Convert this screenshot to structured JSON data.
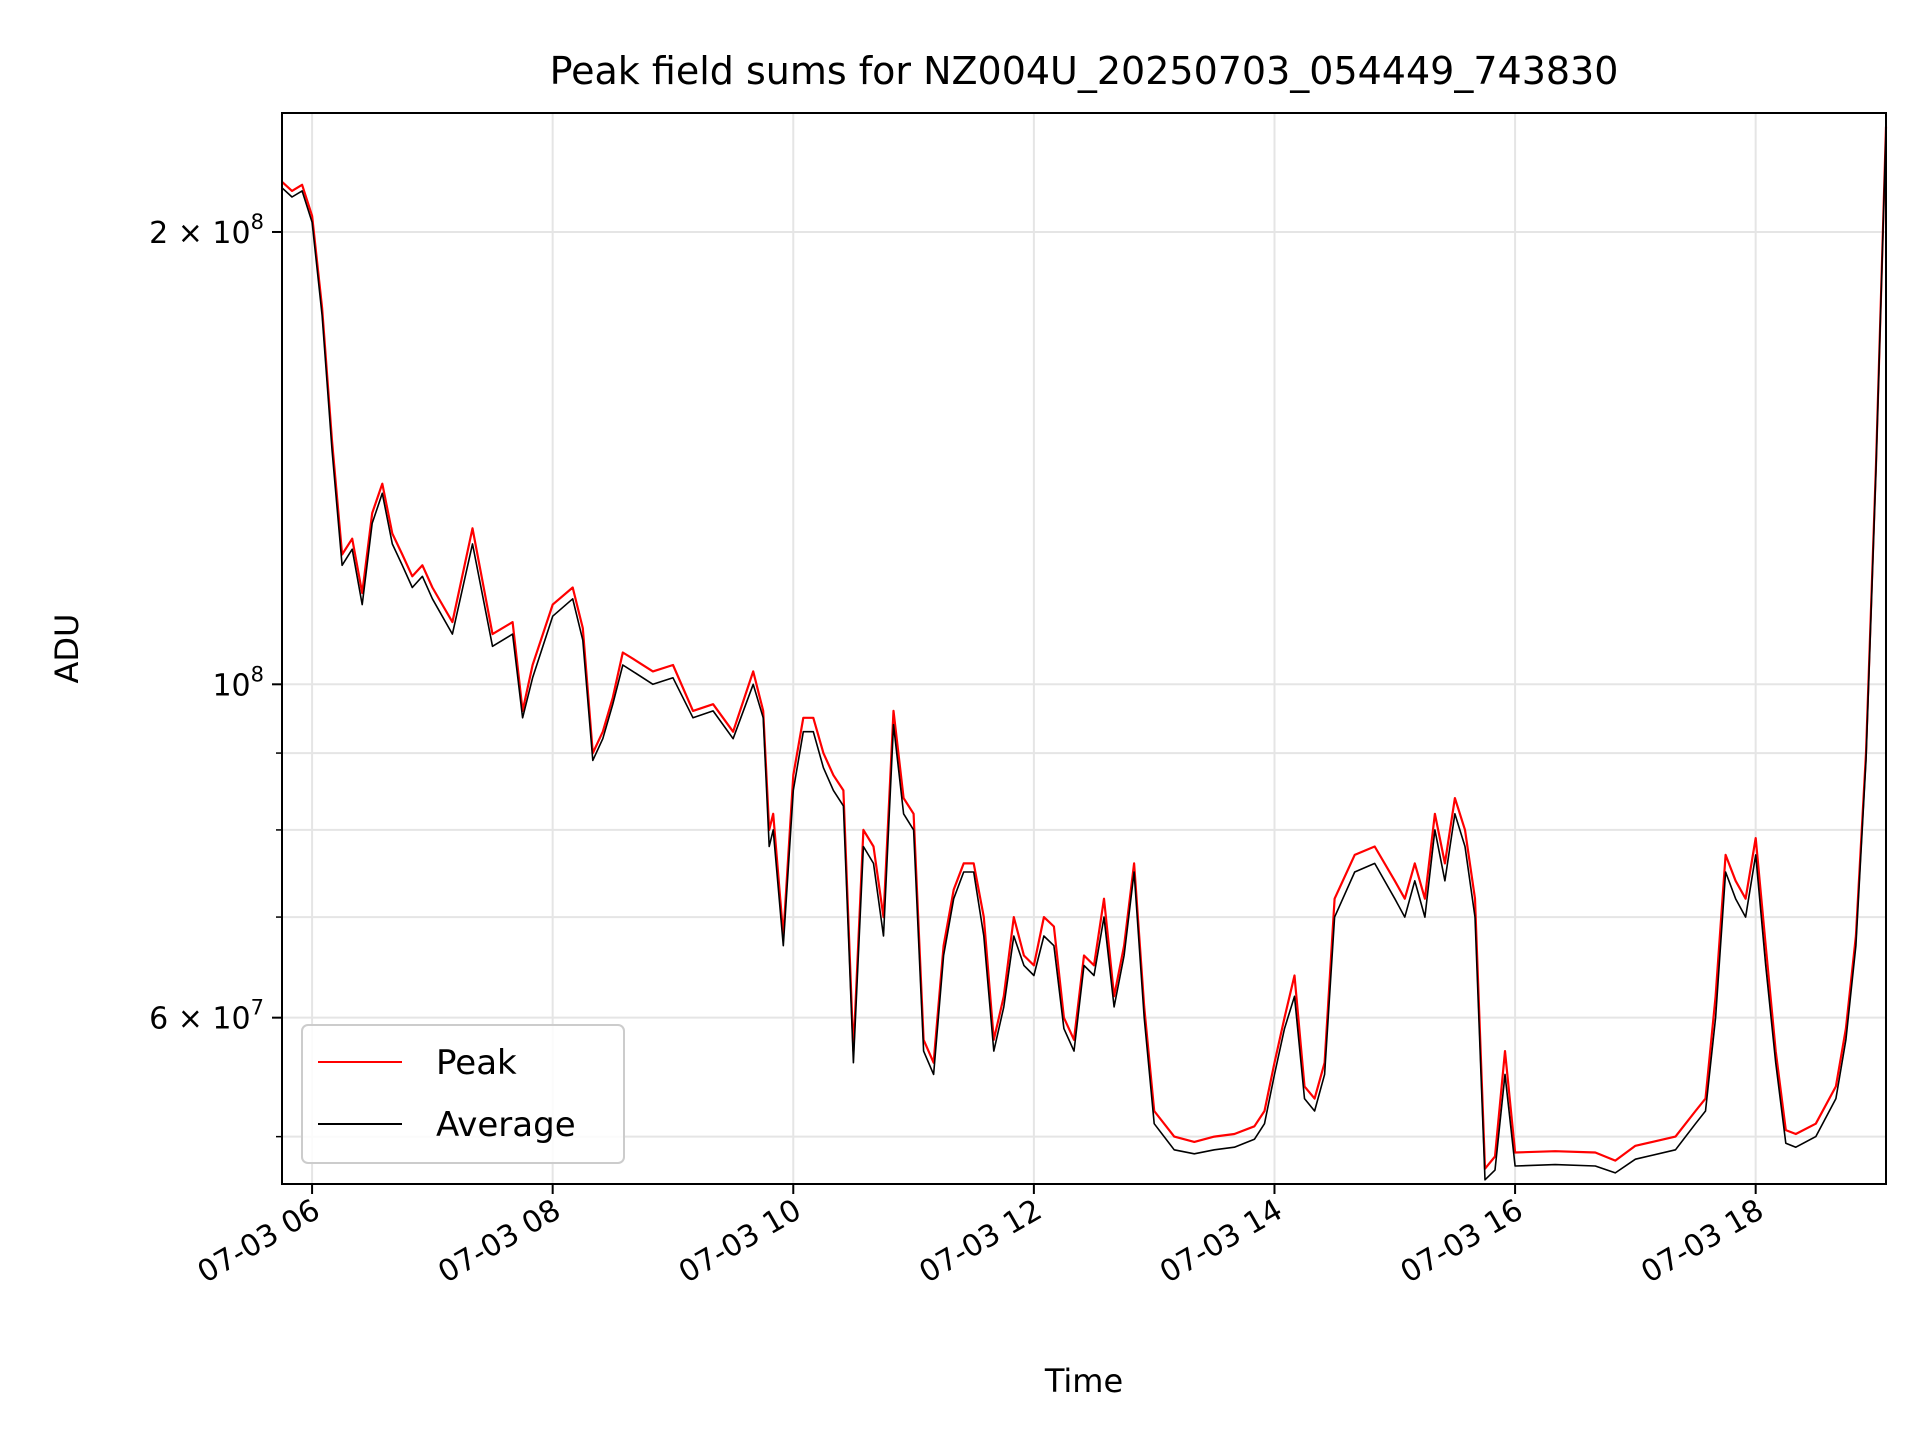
{
  "chart_data": {
    "type": "line",
    "title": "Peak field sums for NZ004U_20250703_054449_743830",
    "xlabel": "Time",
    "ylabel": "ADU",
    "y_scale": "log",
    "ylim": [
      46500000,
      240000000
    ],
    "xlim": [
      "2025-07-03 05:45",
      "2025-07-03 19:05"
    ],
    "x_ticks": [
      {
        "time": "2025-07-03 06:00",
        "label": "07-03 06"
      },
      {
        "time": "2025-07-03 08:00",
        "label": "07-03 08"
      },
      {
        "time": "2025-07-03 10:00",
        "label": "07-03 10"
      },
      {
        "time": "2025-07-03 12:00",
        "label": "07-03 12"
      },
      {
        "time": "2025-07-03 14:00",
        "label": "07-03 14"
      },
      {
        "time": "2025-07-03 16:00",
        "label": "07-03 16"
      },
      {
        "time": "2025-07-03 18:00",
        "label": "07-03 18"
      }
    ],
    "y_major_ticks": [
      {
        "value": 200000000,
        "base": "2 × 10",
        "exp": "8"
      },
      {
        "value": 100000000,
        "base": "10",
        "exp": "8"
      },
      {
        "value": 60000000,
        "base": "6 × 10",
        "exp": "7"
      }
    ],
    "y_minor_ticks": [
      50000000,
      70000000,
      80000000,
      90000000
    ],
    "grid": true,
    "legend_position": "bottom-left",
    "colors": {
      "Peak": "#ff0000",
      "Average": "#000000",
      "grid": "#e5e5e5"
    },
    "x": [
      "05:45",
      "05:50",
      "05:55",
      "06:00",
      "06:05",
      "06:10",
      "06:15",
      "06:20",
      "06:25",
      "06:30",
      "06:35",
      "06:40",
      "06:45",
      "06:50",
      "06:55",
      "07:00",
      "07:10",
      "07:20",
      "07:30",
      "07:40",
      "07:45",
      "07:50",
      "08:00",
      "08:10",
      "08:15",
      "08:20",
      "08:25",
      "08:30",
      "08:35",
      "08:40",
      "08:50",
      "09:00",
      "09:10",
      "09:20",
      "09:30",
      "09:40",
      "09:45",
      "09:48",
      "09:50",
      "09:55",
      "10:00",
      "10:05",
      "10:10",
      "10:15",
      "10:20",
      "10:25",
      "10:30",
      "10:35",
      "10:40",
      "10:45",
      "10:50",
      "10:55",
      "11:00",
      "11:05",
      "11:10",
      "11:15",
      "11:20",
      "11:25",
      "11:30",
      "11:35",
      "11:40",
      "11:45",
      "11:50",
      "11:55",
      "12:00",
      "12:05",
      "12:10",
      "12:15",
      "12:20",
      "12:25",
      "12:30",
      "12:35",
      "12:40",
      "12:45",
      "12:50",
      "12:55",
      "13:00",
      "13:10",
      "13:20",
      "13:30",
      "13:40",
      "13:50",
      "13:55",
      "14:00",
      "14:05",
      "14:10",
      "14:15",
      "14:20",
      "14:25",
      "14:30",
      "14:40",
      "14:50",
      "15:00",
      "15:05",
      "15:10",
      "15:15",
      "15:20",
      "15:25",
      "15:30",
      "15:35",
      "15:40",
      "15:45",
      "15:50",
      "15:55",
      "16:00",
      "16:20",
      "16:40",
      "16:50",
      "17:00",
      "17:20",
      "17:30",
      "17:35",
      "17:40",
      "17:45",
      "17:50",
      "17:55",
      "18:00",
      "18:05",
      "18:10",
      "18:15",
      "18:20",
      "18:30",
      "18:40",
      "18:45",
      "18:50",
      "18:55",
      "19:00",
      "19:05"
    ],
    "series": [
      {
        "name": "Peak",
        "values": [
          216000000,
          213000000,
          215000000,
          205000000,
          178000000,
          145000000,
          122000000,
          125000000,
          115000000,
          130000000,
          136000000,
          126000000,
          122000000,
          118000000,
          120000000,
          116000000,
          110000000,
          127000000,
          108000000,
          110000000,
          96000000,
          103000000,
          113000000,
          116000000,
          109000000,
          90000000,
          93000000,
          98000000,
          105000000,
          104000000,
          102000000,
          103000000,
          96000000,
          97000000,
          93000000,
          102000000,
          96000000,
          80000000,
          82000000,
          68000000,
          87000000,
          95000000,
          95000000,
          90000000,
          87000000,
          85000000,
          57000000,
          80000000,
          78000000,
          70000000,
          96000000,
          84000000,
          82000000,
          58000000,
          56000000,
          67000000,
          73000000,
          76000000,
          76000000,
          70000000,
          58000000,
          62000000,
          70000000,
          66000000,
          65000000,
          70000000,
          69000000,
          60000000,
          58000000,
          66000000,
          65000000,
          72000000,
          62000000,
          67000000,
          76000000,
          61000000,
          52000000,
          50000000,
          49600000,
          50000000,
          50200000,
          50800000,
          52000000,
          56000000,
          60000000,
          64000000,
          54000000,
          53000000,
          56000000,
          72000000,
          77000000,
          78000000,
          74000000,
          72000000,
          76000000,
          72000000,
          82000000,
          76000000,
          84000000,
          80000000,
          72000000,
          47600000,
          48500000,
          57000000,
          48800000,
          48900000,
          48800000,
          48200000,
          49300000,
          50000000,
          52000000,
          53000000,
          62000000,
          77000000,
          74000000,
          72000000,
          79000000,
          67000000,
          57000000,
          50500000,
          50200000,
          51000000,
          54000000,
          59000000,
          68000000,
          90000000,
          140000000,
          235000000
        ]
      },
      {
        "name": "Average",
        "values": [
          214000000,
          211000000,
          213000000,
          203000000,
          176000000,
          143000000,
          120000000,
          123000000,
          113000000,
          128000000,
          134000000,
          124000000,
          120000000,
          116000000,
          118000000,
          114000000,
          108000000,
          124000000,
          106000000,
          108000000,
          95000000,
          101000000,
          111000000,
          114000000,
          107000000,
          89000000,
          92000000,
          97000000,
          103000000,
          102000000,
          100000000,
          101000000,
          95000000,
          96000000,
          92000000,
          100000000,
          95000000,
          78000000,
          80000000,
          67000000,
          85000000,
          93000000,
          93000000,
          88000000,
          85000000,
          83000000,
          56000000,
          78000000,
          76000000,
          68000000,
          94000000,
          82000000,
          80000000,
          57000000,
          55000000,
          66000000,
          72000000,
          75000000,
          75000000,
          68000000,
          57000000,
          61000000,
          68000000,
          65000000,
          64000000,
          68000000,
          67000000,
          59000000,
          57000000,
          65000000,
          64000000,
          70000000,
          61000000,
          66000000,
          75000000,
          60000000,
          51000000,
          49000000,
          48700000,
          49000000,
          49200000,
          49800000,
          51000000,
          55000000,
          59000000,
          62000000,
          53000000,
          52000000,
          55000000,
          70000000,
          75000000,
          76000000,
          72000000,
          70000000,
          74000000,
          70000000,
          80000000,
          74000000,
          82000000,
          78000000,
          70000000,
          46800000,
          47500000,
          55000000,
          47800000,
          47900000,
          47800000,
          47300000,
          48300000,
          49000000,
          51000000,
          52000000,
          60000000,
          75000000,
          72000000,
          70000000,
          77000000,
          65000000,
          56000000,
          49500000,
          49200000,
          50000000,
          53000000,
          58000000,
          67000000,
          89000000,
          139000000,
          234000000
        ]
      }
    ]
  }
}
